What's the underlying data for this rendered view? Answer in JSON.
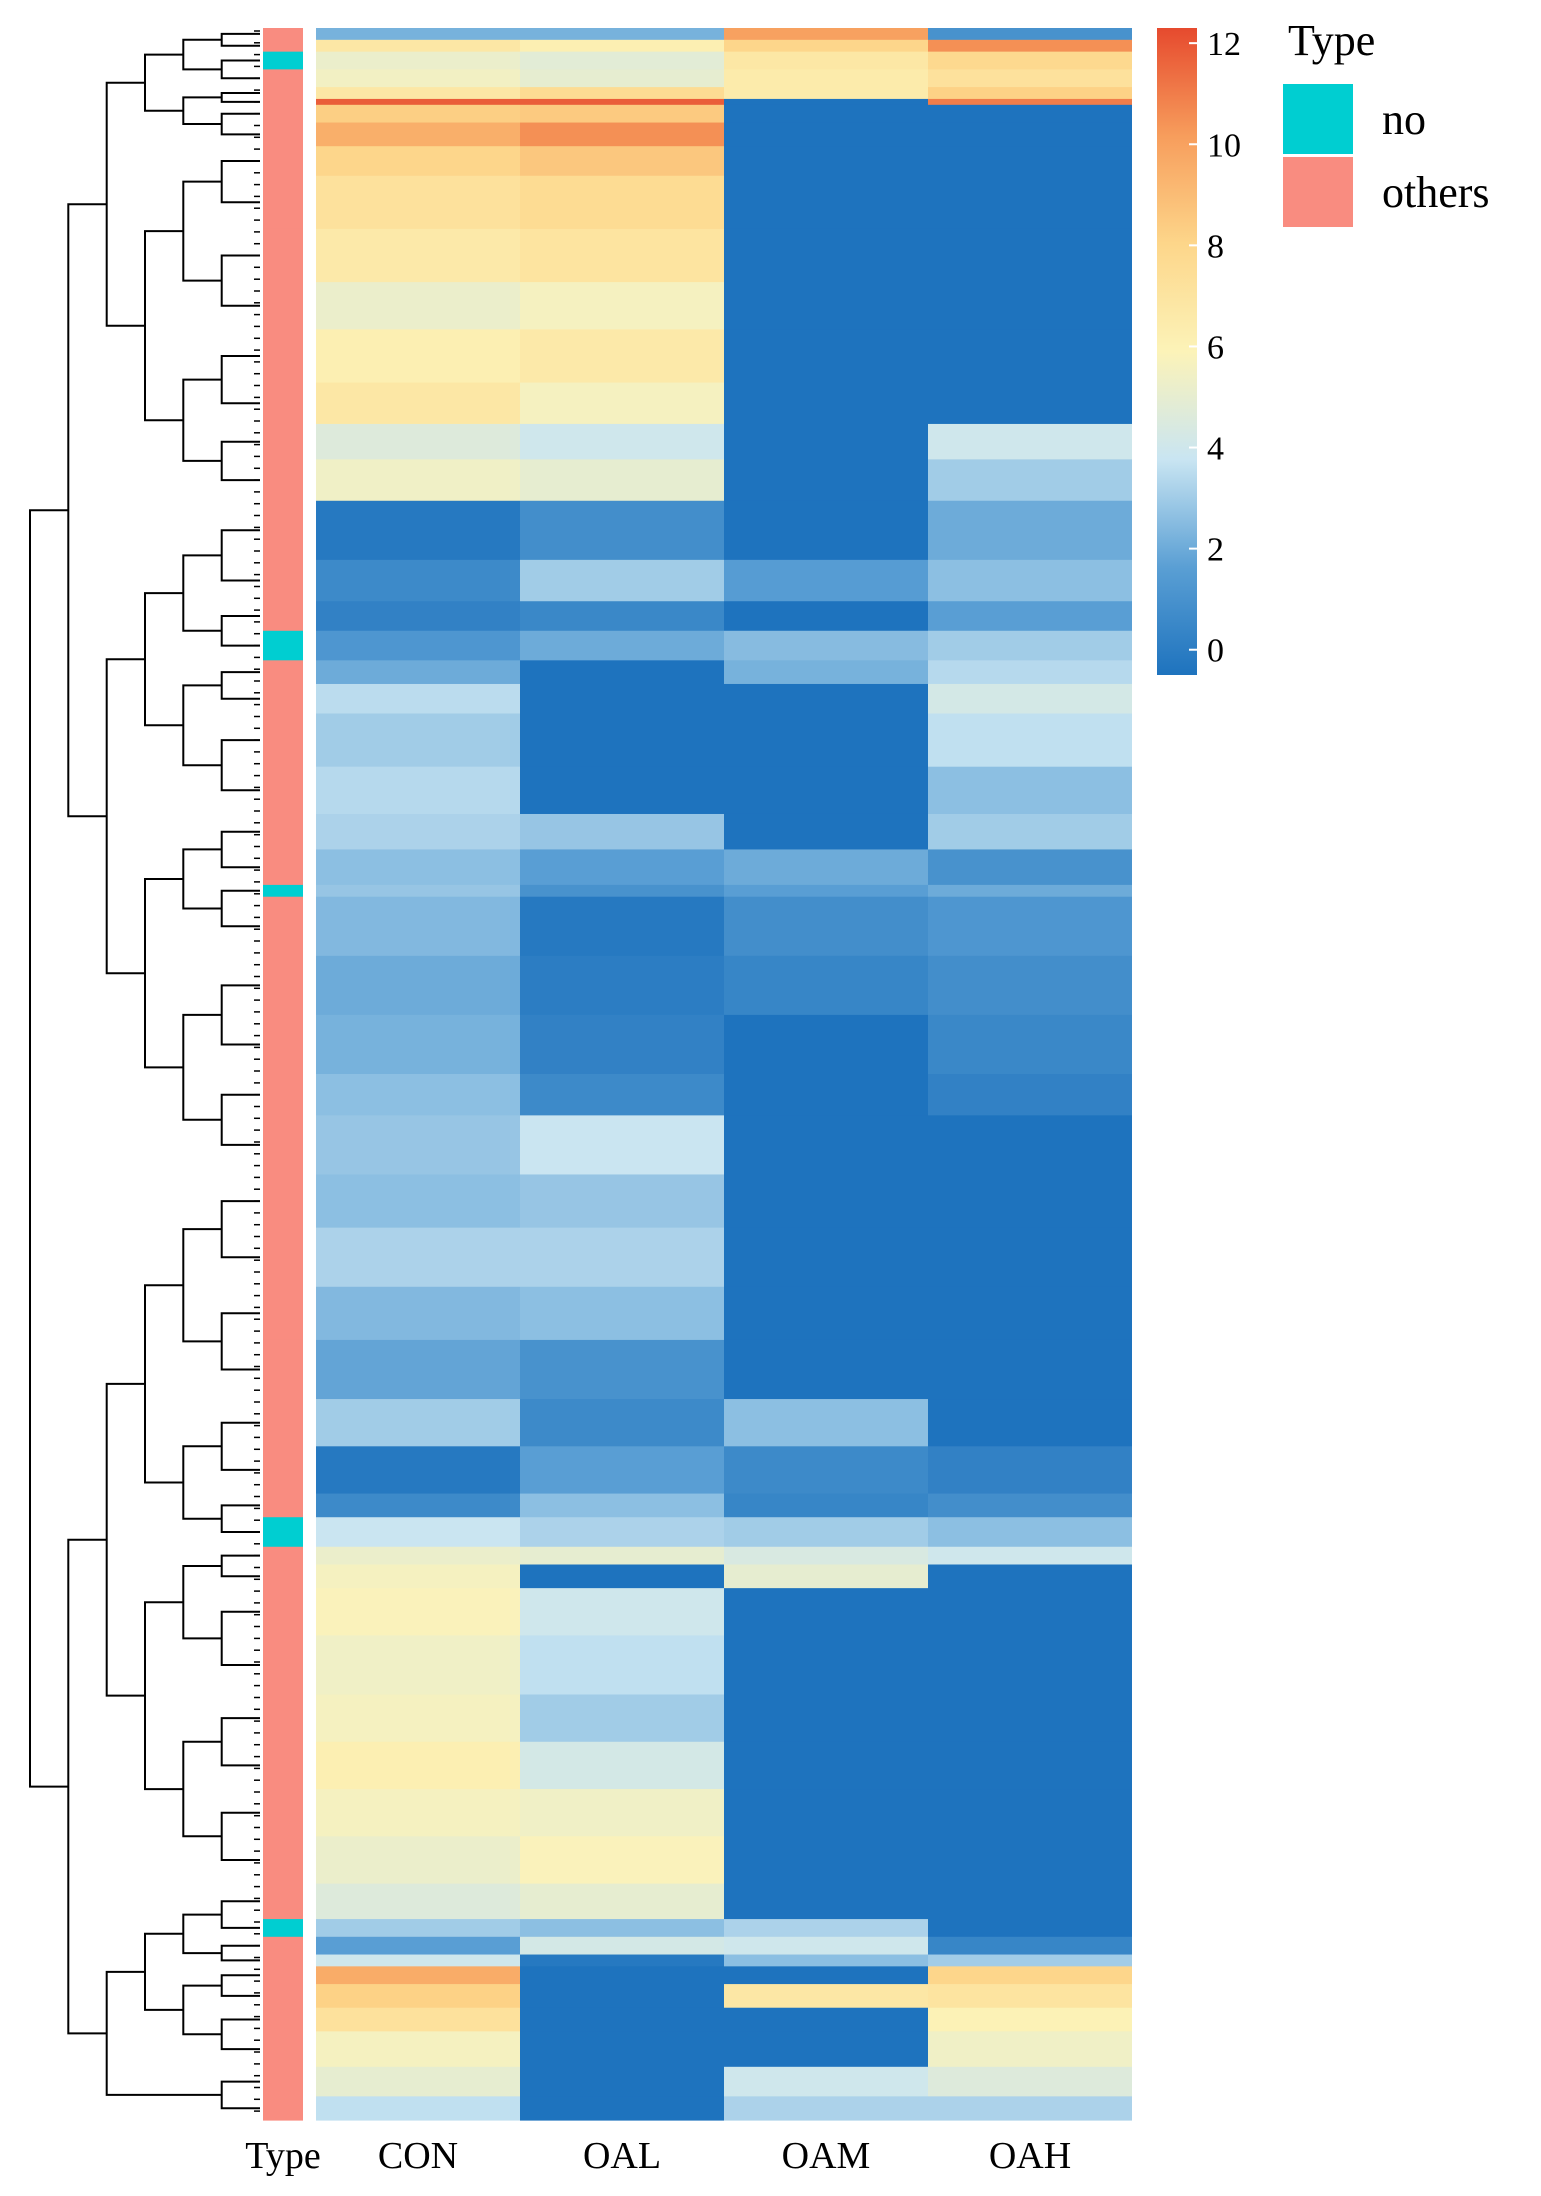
{
  "chart_data": {
    "type": "heatmap",
    "title": "",
    "columns": [
      "CON",
      "OAL",
      "OAM",
      "OAH"
    ],
    "row_annotation": {
      "label": "Type",
      "legend_title": "Type",
      "categories": [
        {
          "name": "no",
          "color": "#00CED1"
        },
        {
          "name": "others",
          "color": "#F98C80"
        }
      ]
    },
    "colorbar": {
      "min": -0.5,
      "max": 12.3,
      "ticks": [
        0,
        2,
        4,
        6,
        8,
        10,
        12
      ],
      "colors": [
        "#1E73BE",
        "#5A9FD4",
        "#C9E5F2",
        "#FCF3B8",
        "#FDD68A",
        "#F79D5C",
        "#E64A2E"
      ]
    },
    "row_blocks": [
      {
        "rows": 2,
        "values": [
          2.2,
          2.2,
          10.0,
          1.0
        ],
        "type": "others"
      },
      {
        "rows": 2,
        "values": [
          6.8,
          6.2,
          8.0,
          10.5
        ],
        "type": "others"
      },
      {
        "rows": 3,
        "values": [
          5.2,
          4.8,
          6.8,
          7.8
        ],
        "type": "no"
      },
      {
        "rows": 3,
        "values": [
          5.5,
          5.0,
          6.5,
          7.2
        ],
        "type": "others"
      },
      {
        "rows": 2,
        "values": [
          6.8,
          7.6,
          6.5,
          8.2
        ],
        "type": "others"
      },
      {
        "rows": 1,
        "values": [
          11.8,
          11.8,
          -0.5,
          11.0
        ],
        "type": "others"
      },
      {
        "rows": 3,
        "values": [
          8.3,
          8.5,
          -0.5,
          -0.5
        ],
        "type": "others"
      },
      {
        "rows": 4,
        "values": [
          9.5,
          10.5,
          -0.5,
          -0.5
        ],
        "type": "others"
      },
      {
        "rows": 5,
        "values": [
          8.0,
          8.6,
          -0.5,
          -0.5
        ],
        "type": "others"
      },
      {
        "rows": 9,
        "values": [
          7.2,
          7.6,
          -0.5,
          -0.5
        ],
        "type": "others"
      },
      {
        "rows": 9,
        "values": [
          6.6,
          7.0,
          -0.5,
          -0.5
        ],
        "type": "others"
      },
      {
        "rows": 8,
        "values": [
          5.2,
          5.6,
          -0.5,
          -0.5
        ],
        "type": "others"
      },
      {
        "rows": 9,
        "values": [
          6.2,
          6.6,
          -0.5,
          -0.5
        ],
        "type": "others"
      },
      {
        "rows": 7,
        "values": [
          6.8,
          5.6,
          -0.5,
          -0.5
        ],
        "type": "others"
      },
      {
        "rows": 6,
        "values": [
          4.6,
          4.0,
          -0.5,
          4.0
        ],
        "type": "others"
      },
      {
        "rows": 7,
        "values": [
          5.4,
          5.0,
          -0.5,
          3.0
        ],
        "type": "others"
      },
      {
        "rows": 10,
        "values": [
          -0.2,
          0.8,
          -0.5,
          2.0
        ],
        "type": "others"
      },
      {
        "rows": 7,
        "values": [
          0.6,
          3.0,
          1.5,
          2.6
        ],
        "type": "others"
      },
      {
        "rows": 5,
        "values": [
          0.2,
          0.5,
          -0.5,
          1.6
        ],
        "type": "others"
      },
      {
        "rows": 5,
        "values": [
          1.2,
          2.0,
          2.5,
          3.0
        ],
        "type": "no"
      },
      {
        "rows": 4,
        "values": [
          2.0,
          -0.5,
          2.2,
          3.4
        ],
        "type": "others"
      },
      {
        "rows": 5,
        "values": [
          3.5,
          -0.5,
          -0.5,
          4.2
        ],
        "type": "others"
      },
      {
        "rows": 9,
        "values": [
          3.0,
          -0.5,
          -0.5,
          3.6
        ],
        "type": "others"
      },
      {
        "rows": 8,
        "values": [
          3.4,
          -0.5,
          -0.5,
          2.6
        ],
        "type": "others"
      },
      {
        "rows": 6,
        "values": [
          3.2,
          2.8,
          -0.5,
          3.0
        ],
        "type": "others"
      },
      {
        "rows": 6,
        "values": [
          2.6,
          1.6,
          2.0,
          1.0
        ],
        "type": "others"
      },
      {
        "rows": 2,
        "values": [
          2.8,
          1.0,
          1.6,
          2.0
        ],
        "type": "no"
      },
      {
        "rows": 10,
        "values": [
          2.4,
          -0.2,
          0.8,
          1.2
        ],
        "type": "others"
      },
      {
        "rows": 10,
        "values": [
          2.0,
          0.0,
          0.4,
          0.8
        ],
        "type": "others"
      },
      {
        "rows": 10,
        "values": [
          2.2,
          0.2,
          -0.5,
          0.5
        ],
        "type": "others"
      },
      {
        "rows": 7,
        "values": [
          2.6,
          0.6,
          -0.5,
          0.2
        ],
        "type": "others"
      },
      {
        "rows": 10,
        "values": [
          2.8,
          3.8,
          -0.5,
          -0.5
        ],
        "type": "others"
      },
      {
        "rows": 9,
        "values": [
          2.6,
          2.8,
          -0.5,
          -0.5
        ],
        "type": "others"
      },
      {
        "rows": 10,
        "values": [
          3.2,
          3.2,
          -0.5,
          -0.5
        ],
        "type": "others"
      },
      {
        "rows": 9,
        "values": [
          2.4,
          2.6,
          -0.5,
          -0.5
        ],
        "type": "others"
      },
      {
        "rows": 10,
        "values": [
          1.8,
          1.0,
          -0.5,
          -0.5
        ],
        "type": "others"
      },
      {
        "rows": 8,
        "values": [
          3.0,
          0.6,
          2.6,
          -0.5
        ],
        "type": "others"
      },
      {
        "rows": 8,
        "values": [
          -0.2,
          1.6,
          0.6,
          0.2
        ],
        "type": "others"
      },
      {
        "rows": 4,
        "values": [
          0.6,
          2.6,
          0.4,
          0.8
        ],
        "type": "others"
      },
      {
        "rows": 5,
        "values": [
          3.8,
          3.2,
          3.0,
          2.6
        ],
        "type": "no"
      },
      {
        "rows": 3,
        "values": [
          5.2,
          5.0,
          4.4,
          4.0
        ],
        "type": "others"
      },
      {
        "rows": 4,
        "values": [
          5.6,
          -0.5,
          5.0,
          -0.5
        ],
        "type": "others"
      },
      {
        "rows": 8,
        "values": [
          5.8,
          4.0,
          -0.5,
          -0.5
        ],
        "type": "others"
      },
      {
        "rows": 10,
        "values": [
          5.4,
          3.6,
          -0.5,
          -0.5
        ],
        "type": "others"
      },
      {
        "rows": 8,
        "values": [
          5.6,
          3.0,
          -0.5,
          -0.5
        ],
        "type": "others"
      },
      {
        "rows": 8,
        "values": [
          6.2,
          4.2,
          -0.5,
          -0.5
        ],
        "type": "others"
      },
      {
        "rows": 8,
        "values": [
          5.6,
          5.4,
          -0.5,
          -0.5
        ],
        "type": "others"
      },
      {
        "rows": 8,
        "values": [
          5.2,
          5.8,
          -0.5,
          -0.5
        ],
        "type": "others"
      },
      {
        "rows": 6,
        "values": [
          4.6,
          5.0,
          -0.5,
          -0.5
        ],
        "type": "others"
      },
      {
        "rows": 3,
        "values": [
          3.0,
          2.6,
          3.2,
          -0.5
        ],
        "type": "no"
      },
      {
        "rows": 3,
        "values": [
          1.6,
          4.2,
          4.0,
          0.4
        ],
        "type": "others"
      },
      {
        "rows": 2,
        "values": [
          4.0,
          -0.2,
          2.6,
          3.0
        ],
        "type": "others"
      },
      {
        "rows": 3,
        "values": [
          9.6,
          -0.5,
          -0.5,
          8.0
        ],
        "type": "others"
      },
      {
        "rows": 4,
        "values": [
          8.2,
          -0.5,
          6.8,
          7.0
        ],
        "type": "others"
      },
      {
        "rows": 4,
        "values": [
          7.2,
          -0.5,
          -0.5,
          6.0
        ],
        "type": "others"
      },
      {
        "rows": 6,
        "values": [
          5.6,
          -0.5,
          -0.5,
          5.4
        ],
        "type": "others"
      },
      {
        "rows": 5,
        "values": [
          5.0,
          -0.5,
          4.0,
          4.6
        ],
        "type": "others"
      },
      {
        "rows": 4,
        "values": [
          3.6,
          -0.5,
          3.2,
          3.2
        ],
        "type": "others"
      }
    ]
  }
}
